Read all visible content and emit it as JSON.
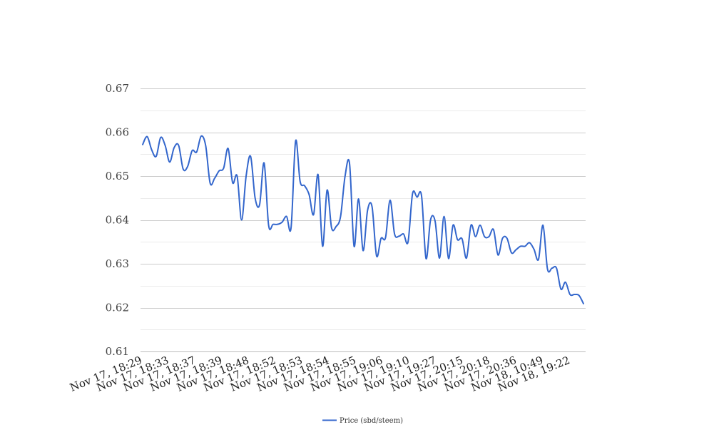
{
  "chart_data": {
    "type": "line",
    "title": "",
    "xlabel": "",
    "ylabel": "",
    "ylim": [
      0.61,
      0.67
    ],
    "yticks": [
      0.61,
      0.62,
      0.63,
      0.64,
      0.65,
      0.66,
      0.67
    ],
    "ytick_labels": [
      "0.61",
      "0.62",
      "0.63",
      "0.64",
      "0.65",
      "0.66",
      "0.67"
    ],
    "minor_grid": true,
    "grid": true,
    "legend_position": "bottom",
    "x_tick_labels": [
      "Nov 17, 18:29",
      "Nov 17, 18:33",
      "Nov 17, 18:37",
      "Nov 17, 18:39",
      "Nov 17, 18:48",
      "Nov 17, 18:52",
      "Nov 17, 18:53",
      "Nov 17, 18:54",
      "Nov 17, 18:55",
      "Nov 17, 19:06",
      "Nov 17, 19:10",
      "Nov 17, 19:27",
      "Nov 17, 20:15",
      "Nov 17, 20:18",
      "Nov 17, 20:36",
      "Nov 18, 10:49",
      "Nov 18, 19:22"
    ],
    "series": [
      {
        "name": "Price (sbd/steem)",
        "color": "#3366cc",
        "values": [
          0.6572,
          0.659,
          0.656,
          0.6545,
          0.6588,
          0.657,
          0.6532,
          0.6565,
          0.657,
          0.6516,
          0.6522,
          0.6558,
          0.6555,
          0.6591,
          0.657,
          0.6484,
          0.6495,
          0.6512,
          0.6518,
          0.6563,
          0.6485,
          0.65,
          0.64,
          0.65,
          0.6545,
          0.645,
          0.6435,
          0.653,
          0.6388,
          0.639,
          0.639,
          0.6395,
          0.6408,
          0.6383,
          0.658,
          0.6488,
          0.6478,
          0.6458,
          0.6412,
          0.6503,
          0.634,
          0.6468,
          0.6382,
          0.6385,
          0.6408,
          0.65,
          0.6528,
          0.634,
          0.6448,
          0.633,
          0.6422,
          0.643,
          0.6318,
          0.6358,
          0.636,
          0.6445,
          0.6368,
          0.6363,
          0.6368,
          0.635,
          0.646,
          0.6452,
          0.6455,
          0.6312,
          0.64,
          0.6398,
          0.6313,
          0.6408,
          0.6312,
          0.6388,
          0.6355,
          0.6357,
          0.6313,
          0.6388,
          0.6362,
          0.6388,
          0.6362,
          0.6362,
          0.6378,
          0.632,
          0.6358,
          0.6358,
          0.6325,
          0.6332,
          0.634,
          0.634,
          0.6348,
          0.6333,
          0.631,
          0.6388,
          0.6288,
          0.629,
          0.629,
          0.6242,
          0.6258,
          0.623,
          0.623,
          0.6228,
          0.6209
        ]
      }
    ]
  }
}
